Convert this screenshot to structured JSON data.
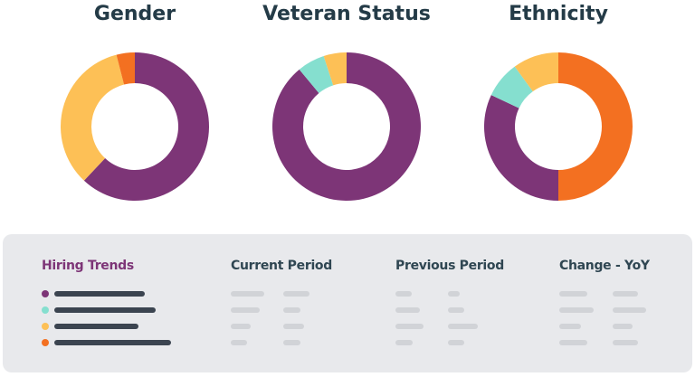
{
  "chart_data": [
    {
      "type": "pie",
      "title": "Gender",
      "colors": [
        "#7d3577",
        "#fdc056",
        "#f37021"
      ],
      "values": [
        62,
        34,
        4
      ]
    },
    {
      "type": "pie",
      "title": "Veteran Status",
      "colors": [
        "#7d3577",
        "#85dfcf",
        "#fdc056"
      ],
      "values": [
        89,
        6,
        5
      ]
    },
    {
      "type": "pie",
      "title": "Ethnicity",
      "colors": [
        "#f37021",
        "#7d3577",
        "#85dfcf",
        "#fdc056"
      ],
      "values": [
        50,
        32,
        8,
        10
      ]
    }
  ],
  "panel": {
    "headers": [
      "Hiring Trends",
      "Current Period",
      "Previous Period",
      "Change - YoY"
    ],
    "legend_colors": [
      "#7d3577",
      "#85dfcf",
      "#fdc056",
      "#f37021"
    ]
  }
}
